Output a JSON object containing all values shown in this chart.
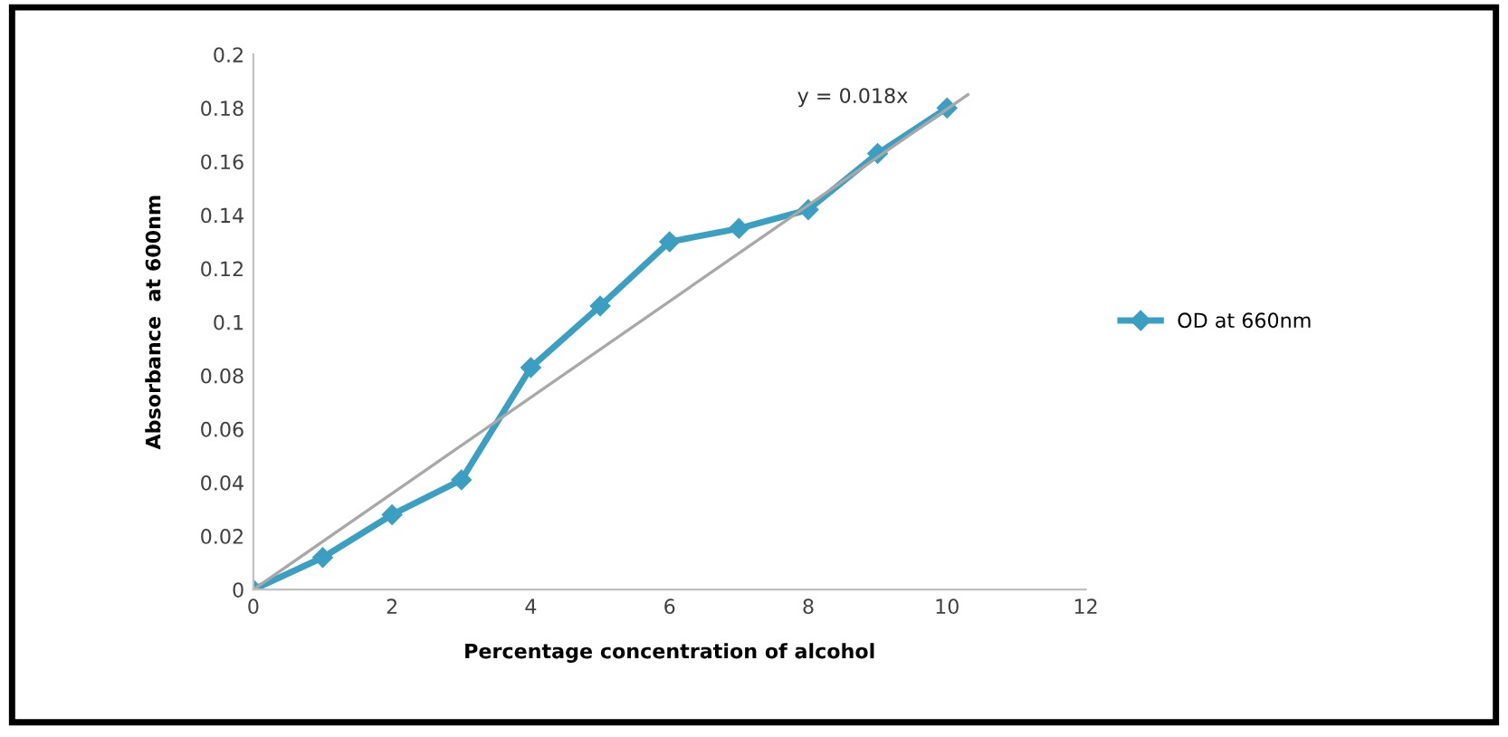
{
  "chart_data": {
    "type": "line",
    "xlabel": "Percentage concentration of alcohol",
    "ylabel": "Absorbance  at 600nm",
    "x": [
      0,
      1,
      2,
      3,
      4,
      5,
      6,
      7,
      8,
      9,
      10
    ],
    "series": [
      {
        "name": "OD at 660nm",
        "color": "#3a9fc0",
        "marker": "diamond",
        "values": [
          0,
          0.012,
          0.028,
          0.041,
          0.083,
          0.106,
          0.13,
          0.135,
          0.142,
          0.163,
          0.18
        ]
      },
      {
        "color": "#a8a8a8",
        "marker": "none",
        "x": [
          0,
          10.3
        ],
        "values": [
          0,
          0.185
        ]
      }
    ],
    "annotations": [
      "y = 0.018x"
    ],
    "xlim": [
      0,
      12
    ],
    "xticks": [
      0,
      2,
      4,
      6,
      8,
      10,
      12
    ],
    "ylim": [
      0,
      0.2
    ],
    "yticks": [
      0,
      0.02,
      0.04,
      0.06,
      0.08,
      0.1,
      0.12,
      0.14,
      0.16,
      0.18,
      0.2
    ],
    "grid": false,
    "legend": "right"
  }
}
